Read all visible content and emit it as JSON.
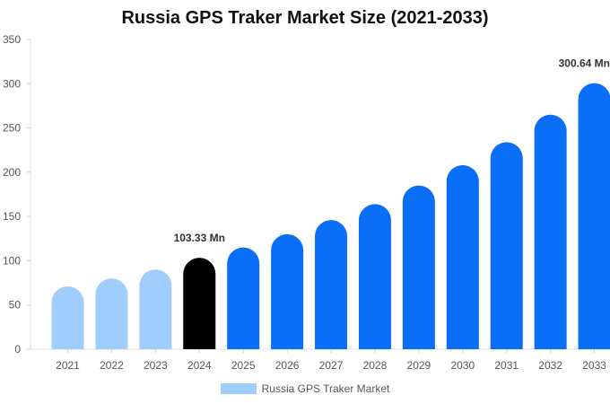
{
  "chart_data": {
    "type": "bar",
    "title": "Russia GPS Traker Market Size (2021-2033)",
    "categories": [
      "2021",
      "2022",
      "2023",
      "2024",
      "2025",
      "2026",
      "2027",
      "2028",
      "2029",
      "2030",
      "2031",
      "2032",
      "2033"
    ],
    "series": [
      {
        "name": "Russia GPS Traker Market",
        "values": [
          71,
          80,
          90,
          103.33,
          115,
          130,
          146,
          164,
          185,
          208,
          234,
          265,
          300.64
        ]
      }
    ],
    "ylim": [
      0,
      350
    ],
    "yticks": [
      0,
      50,
      100,
      150,
      200,
      250,
      300,
      350
    ],
    "data_labels": [
      {
        "category": "2024",
        "text": "103.33 Mn"
      },
      {
        "category": "2033",
        "text": "300.64 Mn"
      }
    ],
    "colors": {
      "historic": "#9fcdfc",
      "base_year": "#000000",
      "forecast": "#0a6ef7",
      "legend_swatch": "#9fcdfc"
    },
    "legend_position": "bottom-center",
    "grid": false
  }
}
